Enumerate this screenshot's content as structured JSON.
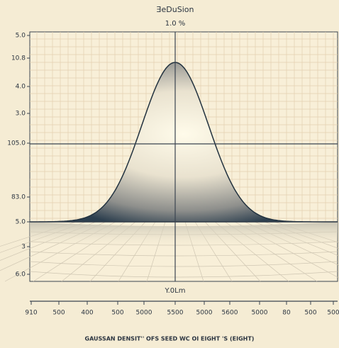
{
  "title": "ƎeDuSion",
  "subtitle": "1.0 %",
  "y_labels": [
    "5.0",
    "10.8",
    "4.0",
    "3.0",
    "105.0",
    "83.0",
    "5.0",
    "3",
    "6.0"
  ],
  "x_axis_label": "Y.0Lm",
  "x_labels": [
    "910",
    "500",
    "400",
    "500",
    "5000",
    "5500",
    "5000",
    "5600",
    "5000",
    "80",
    "500",
    "500"
  ],
  "caption": "GAUSSAN DENSIT'' OFS SEED WC OI EIGHT 'S (EIGHT)"
}
